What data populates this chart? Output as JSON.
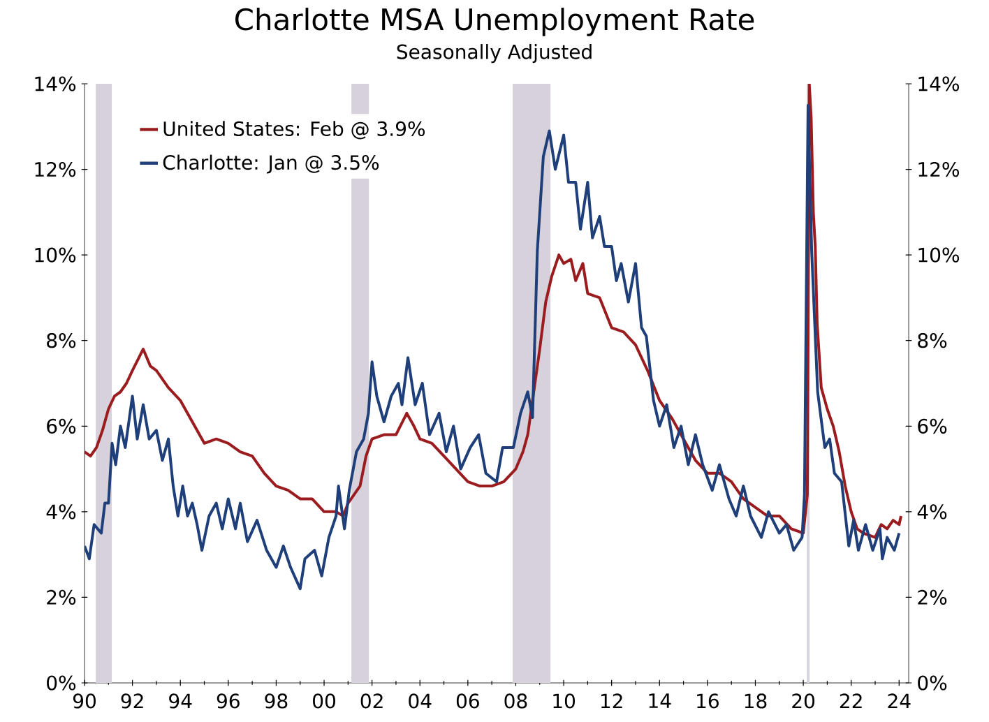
{
  "chart_data": {
    "type": "line",
    "title": "Charlotte MSA Unemployment Rate",
    "subtitle": "Seasonally Adjusted",
    "xlim": [
      1990,
      2024.4
    ],
    "xticks": [
      {
        "value": 1990,
        "label": "90"
      },
      {
        "value": 1992,
        "label": "92"
      },
      {
        "value": 1994,
        "label": "94"
      },
      {
        "value": 1996,
        "label": "96"
      },
      {
        "value": 1998,
        "label": "98"
      },
      {
        "value": 2000,
        "label": "00"
      },
      {
        "value": 2002,
        "label": "02"
      },
      {
        "value": 2004,
        "label": "04"
      },
      {
        "value": 2006,
        "label": "06"
      },
      {
        "value": 2008,
        "label": "08"
      },
      {
        "value": 2010,
        "label": "10"
      },
      {
        "value": 2012,
        "label": "12"
      },
      {
        "value": 2014,
        "label": "14"
      },
      {
        "value": 2016,
        "label": "16"
      },
      {
        "value": 2018,
        "label": "18"
      },
      {
        "value": 2020,
        "label": "20"
      },
      {
        "value": 2022,
        "label": "22"
      },
      {
        "value": 2024,
        "label": "24"
      }
    ],
    "ylim": [
      0,
      14
    ],
    "yticks": [
      {
        "value": 0,
        "label": "0%"
      },
      {
        "value": 2,
        "label": "2%"
      },
      {
        "value": 4,
        "label": "4%"
      },
      {
        "value": 6,
        "label": "6%"
      },
      {
        "value": 8,
        "label": "8%"
      },
      {
        "value": 10,
        "label": "10%"
      },
      {
        "value": 12,
        "label": "12%"
      },
      {
        "value": 14,
        "label": "14%"
      }
    ],
    "y2lim": [
      0,
      14
    ],
    "y2ticks": [
      {
        "value": 0,
        "label": "0%"
      },
      {
        "value": 2,
        "label": "2%"
      },
      {
        "value": 4,
        "label": "4%"
      },
      {
        "value": 6,
        "label": "6%"
      },
      {
        "value": 8,
        "label": "8%"
      },
      {
        "value": 10,
        "label": "10%"
      },
      {
        "value": 12,
        "label": "12%"
      },
      {
        "value": 14,
        "label": "14%"
      }
    ],
    "legend": "top left",
    "bands": [
      {
        "axis": "x",
        "from": 1990.47,
        "to": 1991.14,
        "color": "#d6d1da"
      },
      {
        "axis": "x",
        "from": 2001.14,
        "to": 2001.87,
        "color": "#d6d1da"
      },
      {
        "axis": "x",
        "from": 2007.87,
        "to": 2009.45,
        "color": "#d6d1da"
      },
      {
        "axis": "x",
        "from": 2020.15,
        "to": 2020.26,
        "color": "#d6d1da"
      }
    ],
    "series": [
      {
        "name": "United States: Feb @ 3.9%",
        "color": "#9b1c1f",
        "x": [
          1990.0,
          1990.25,
          1990.5,
          1990.75,
          1991.0,
          1991.25,
          1991.5,
          1991.75,
          1992.0,
          1992.45,
          1992.75,
          1993.0,
          1993.5,
          1994.0,
          1994.5,
          1995.0,
          1995.5,
          1996.0,
          1996.5,
          1997.0,
          1997.5,
          1998.0,
          1998.5,
          1999.0,
          1999.5,
          2000.0,
          2000.5,
          2000.8,
          2001.0,
          2001.5,
          2001.75,
          2002.0,
          2002.5,
          2003.0,
          2003.45,
          2003.75,
          2004.0,
          2004.5,
          2005.0,
          2005.5,
          2006.0,
          2006.5,
          2007.0,
          2007.5,
          2008.0,
          2008.3,
          2008.5,
          2008.75,
          2009.0,
          2009.25,
          2009.5,
          2009.8,
          2010.0,
          2010.3,
          2010.5,
          2010.8,
          2011.0,
          2011.5,
          2012.0,
          2012.5,
          2013.0,
          2013.5,
          2014.0,
          2014.5,
          2015.0,
          2015.5,
          2016.0,
          2016.5,
          2017.0,
          2017.5,
          2018.0,
          2018.5,
          2019.0,
          2019.5,
          2020.0,
          2020.17,
          2020.25,
          2020.33,
          2020.42,
          2020.5,
          2020.58,
          2020.75,
          2021.0,
          2021.25,
          2021.5,
          2021.75,
          2022.0,
          2022.25,
          2022.5,
          2023.0,
          2023.25,
          2023.5,
          2023.75,
          2024.0,
          2024.08
        ],
        "values": [
          5.4,
          5.3,
          5.5,
          5.9,
          6.4,
          6.7,
          6.8,
          7.0,
          7.3,
          7.8,
          7.4,
          7.3,
          6.9,
          6.6,
          6.1,
          5.6,
          5.7,
          5.6,
          5.4,
          5.3,
          4.9,
          4.6,
          4.5,
          4.3,
          4.3,
          4.0,
          4.0,
          3.9,
          4.2,
          4.6,
          5.3,
          5.7,
          5.8,
          5.8,
          6.3,
          6.0,
          5.7,
          5.6,
          5.3,
          5.0,
          4.7,
          4.6,
          4.6,
          4.7,
          5.0,
          5.4,
          5.8,
          6.8,
          7.8,
          8.9,
          9.5,
          10.0,
          9.8,
          9.9,
          9.4,
          9.8,
          9.1,
          9.0,
          8.3,
          8.2,
          7.9,
          7.3,
          6.6,
          6.2,
          5.7,
          5.2,
          4.9,
          4.9,
          4.7,
          4.3,
          4.1,
          3.9,
          3.9,
          3.6,
          3.5,
          4.4,
          14.0,
          13.2,
          11.0,
          10.2,
          8.4,
          6.9,
          6.4,
          6.0,
          5.4,
          4.6,
          4.0,
          3.6,
          3.5,
          3.4,
          3.7,
          3.6,
          3.8,
          3.7,
          3.9
        ]
      },
      {
        "name": "Charlotte: Jan @ 3.5%",
        "color": "#1f3f7a",
        "x": [
          1990.0,
          1990.2,
          1990.4,
          1990.7,
          1990.85,
          1991.0,
          1991.15,
          1991.3,
          1991.5,
          1991.7,
          1992.0,
          1992.2,
          1992.45,
          1992.7,
          1993.0,
          1993.25,
          1993.5,
          1993.7,
          1993.9,
          1994.1,
          1994.3,
          1994.5,
          1994.7,
          1994.9,
          1995.2,
          1995.5,
          1995.75,
          1996.0,
          1996.3,
          1996.5,
          1996.8,
          1997.2,
          1997.6,
          1998.0,
          1998.3,
          1998.6,
          1999.0,
          1999.2,
          1999.6,
          1999.9,
          2000.2,
          2000.5,
          2000.6,
          2000.85,
          2001.05,
          2001.35,
          2001.65,
          2001.85,
          2002.0,
          2002.2,
          2002.5,
          2002.8,
          2003.1,
          2003.25,
          2003.5,
          2003.8,
          2004.1,
          2004.4,
          2004.8,
          2005.1,
          2005.4,
          2005.7,
          2006.1,
          2006.45,
          2006.75,
          2007.2,
          2007.45,
          2007.9,
          2008.2,
          2008.5,
          2008.7,
          2008.9,
          2009.15,
          2009.4,
          2009.65,
          2010.0,
          2010.2,
          2010.5,
          2010.7,
          2011.0,
          2011.2,
          2011.5,
          2011.7,
          2012.0,
          2012.2,
          2012.4,
          2012.7,
          2013.0,
          2013.25,
          2013.45,
          2013.75,
          2014.0,
          2014.3,
          2014.6,
          2014.9,
          2015.2,
          2015.5,
          2015.8,
          2016.2,
          2016.5,
          2016.9,
          2017.2,
          2017.5,
          2017.8,
          2018.25,
          2018.55,
          2019.0,
          2019.3,
          2019.6,
          2019.95,
          2020.05,
          2020.2,
          2020.35,
          2020.6,
          2020.9,
          2021.1,
          2021.3,
          2021.6,
          2021.9,
          2022.1,
          2022.3,
          2022.6,
          2022.9,
          2023.2,
          2023.3,
          2023.5,
          2023.8,
          2024.0
        ],
        "values": [
          3.2,
          2.9,
          3.7,
          3.5,
          4.2,
          4.2,
          5.6,
          5.1,
          6.0,
          5.5,
          6.7,
          5.7,
          6.5,
          5.7,
          5.9,
          5.2,
          5.7,
          4.6,
          3.9,
          4.6,
          3.9,
          4.2,
          3.7,
          3.1,
          3.9,
          4.2,
          3.6,
          4.3,
          3.6,
          4.2,
          3.3,
          3.8,
          3.1,
          2.7,
          3.2,
          2.7,
          2.2,
          2.9,
          3.1,
          2.5,
          3.4,
          3.9,
          4.6,
          3.6,
          4.5,
          5.4,
          5.7,
          6.3,
          7.5,
          6.7,
          6.1,
          6.7,
          7.0,
          6.5,
          7.6,
          6.5,
          7.0,
          5.8,
          6.3,
          5.4,
          6.0,
          5.0,
          5.5,
          5.8,
          4.9,
          4.7,
          5.5,
          5.5,
          6.3,
          6.8,
          6.2,
          10.1,
          12.3,
          12.9,
          12.0,
          12.8,
          11.7,
          11.7,
          10.6,
          11.7,
          10.4,
          10.9,
          10.2,
          10.2,
          9.4,
          9.8,
          8.9,
          9.8,
          8.3,
          8.1,
          6.6,
          6.0,
          6.5,
          5.5,
          6.0,
          5.1,
          5.8,
          5.1,
          4.5,
          5.1,
          4.3,
          3.9,
          4.6,
          3.9,
          3.4,
          4.0,
          3.5,
          3.7,
          3.1,
          3.4,
          4.4,
          13.5,
          10.1,
          6.8,
          5.5,
          5.7,
          4.9,
          4.7,
          3.2,
          3.8,
          3.1,
          3.7,
          3.1,
          3.6,
          2.9,
          3.4,
          3.1,
          3.5
        ]
      }
    ]
  }
}
